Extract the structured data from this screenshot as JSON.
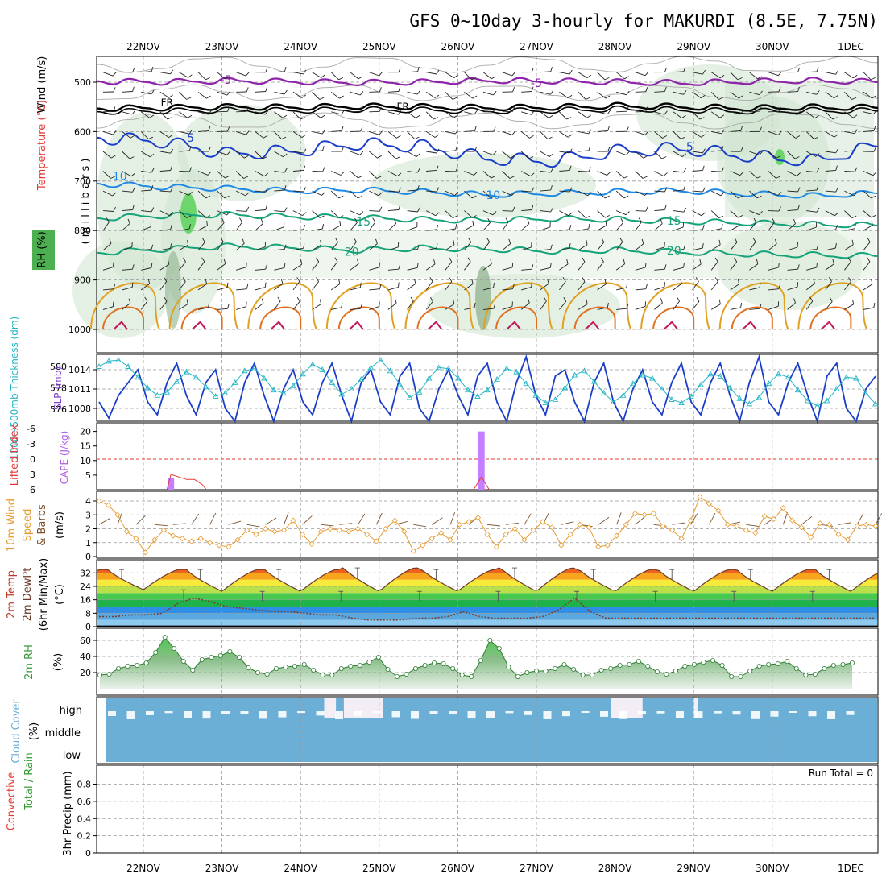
{
  "title": "GFS 0~10day 3-hourly for MAKURDI (8.5E, 7.75N)",
  "date_labels": [
    "22NOV",
    "23NOV",
    "24NOV",
    "25NOV",
    "26NOV",
    "27NOV",
    "28NOV",
    "29NOV",
    "30NOV",
    "1DEC"
  ],
  "run_total_text": "Run Total = 0",
  "colors": {
    "rh_green": "#4caf50",
    "temp_red": "#e53935",
    "wind_purple": "#7b1fa2",
    "cape_violet": "#c77dff",
    "slp_blue": "#1a3ec8",
    "thick_cyan": "#26b5c5",
    "wind_orange": "#e69a2e",
    "cloud_blue": "#6baed6",
    "rh2m_green": "#3a9a3a"
  },
  "chart_data": [
    {
      "panel": "upper_air",
      "type": "contour",
      "ylabel_parts": [
        "RH (%)",
        "Temperature (°C)",
        "Wind (m/s)"
      ],
      "ylabel_right": "( m i l l i b a r s )",
      "yticks": [
        "500",
        "600",
        "700",
        "800",
        "900",
        "1000"
      ],
      "ylim": [
        1000,
        450
      ],
      "contour_labels": [
        {
          "text": "-5",
          "color": "#8e24aa",
          "x_day": 1.05,
          "p": 495
        },
        {
          "text": "-5",
          "color": "#8e24aa",
          "x_day": 5.0,
          "p": 502
        },
        {
          "text": "FR",
          "color": "#000000",
          "x_day": 0.3,
          "p": 540
        },
        {
          "text": "FR",
          "color": "#000000",
          "x_day": 3.3,
          "p": 548
        },
        {
          "text": "5",
          "color": "#1a3ec8",
          "x_day": 0.6,
          "p": 612
        },
        {
          "text": "5",
          "color": "#1a3ec8",
          "x_day": 6.95,
          "p": 630
        },
        {
          "text": "10",
          "color": "#1e88e5",
          "x_day": -0.3,
          "p": 690
        },
        {
          "text": "10",
          "color": "#1e88e5",
          "x_day": 4.45,
          "p": 728
        },
        {
          "text": "15",
          "color": "#16a37a",
          "x_day": 2.8,
          "p": 782
        },
        {
          "text": "15",
          "color": "#16a37a",
          "x_day": 6.75,
          "p": 780
        },
        {
          "text": "20",
          "color": "#16a37a",
          "x_day": 2.65,
          "p": 843
        },
        {
          "text": "20",
          "color": "#16a37a",
          "x_day": 6.75,
          "p": 840
        }
      ],
      "isotherm_levels": {
        "minus5": [
          498,
          500,
          497,
          499,
          501,
          500,
          497,
          498,
          500,
          502,
          499,
          497,
          500
        ],
        "freezing": [
          553,
          552,
          550,
          551,
          549,
          550,
          552,
          551,
          548,
          550,
          553,
          551,
          552
        ],
        "plus5": [
          612,
          620,
          645,
          640,
          625,
          630,
          655,
          660,
          640,
          635,
          650,
          660,
          630
        ],
        "plus10": [
          705,
          712,
          715,
          720,
          718,
          722,
          728,
          725,
          722,
          720,
          726,
          730,
          725
        ],
        "plus15": [
          775,
          770,
          768,
          772,
          774,
          778,
          780,
          776,
          778,
          782,
          785,
          788,
          790
        ],
        "plus20": [
          845,
          838,
          832,
          835,
          840,
          836,
          838,
          842,
          840,
          844,
          848,
          850,
          852
        ]
      }
    },
    {
      "panel": "slp_thickness",
      "type": "line",
      "ylabel_left": "1000~500mb Thickness (dm)",
      "ylabel_right": "SLP (mb)",
      "left_ticks": [
        "580",
        "578",
        "576"
      ],
      "right_ticks": [
        "1014",
        "1011",
        "1008"
      ],
      "series": [
        {
          "name": "SLP",
          "color": "#1a3ec8",
          "values": [
            1009,
            1006.5,
            1010,
            1012,
            1014,
            1009,
            1007,
            1012,
            1015,
            1010,
            1007,
            1012,
            1014,
            1008,
            1006,
            1012,
            1015,
            1010,
            1006,
            1011,
            1014,
            1009,
            1007,
            1012,
            1015,
            1010,
            1006,
            1012,
            1014,
            1009,
            1007,
            1013,
            1015,
            1008,
            1006,
            1011,
            1014,
            1010,
            1007,
            1013,
            1015,
            1009,
            1006,
            1012,
            1016,
            1010,
            1007,
            1013,
            1014,
            1009,
            1006,
            1012,
            1015,
            1009,
            1006,
            1011,
            1014,
            1009,
            1007,
            1012,
            1015,
            1009,
            1007,
            1012,
            1015,
            1010,
            1006,
            1012,
            1016,
            1009,
            1007,
            1012,
            1015,
            1010,
            1006,
            1013,
            1015,
            1008,
            1006,
            1011,
            1013
          ]
        },
        {
          "name": "Thickness",
          "color": "#26b5c5",
          "values": [
            580,
            580.5,
            580.6,
            580,
            579,
            578,
            577.3,
            577.6,
            578.6,
            579.5,
            579,
            578.1,
            577.2,
            577.5,
            578.5,
            579.6,
            579.8,
            578.9,
            577.8,
            577.5,
            578.2,
            579.3,
            580.2,
            579.7,
            578.5,
            577.4,
            577.9,
            578.8,
            579.9,
            580.6,
            579.6,
            578.3,
            577.1,
            577.6,
            578.9,
            579.9,
            579.8,
            578.9,
            577.8,
            577.2,
            577.8,
            578.8,
            579.8,
            579.5,
            578.4,
            577.3,
            576.6,
            576.9,
            578,
            579.2,
            579.6,
            578.6,
            577.5,
            576.7,
            577.3,
            578.4,
            579.2,
            578.9,
            577.9,
            576.9,
            576.6,
            577.2,
            578.3,
            579.3,
            579.1,
            578,
            577,
            576.5,
            577.1,
            578.4,
            579.3,
            579,
            577.8,
            576.8,
            576.3,
            576.8,
            577.9,
            579,
            578.9,
            577.5,
            576.5
          ]
        }
      ]
    },
    {
      "panel": "cape_li",
      "type": "bar+line",
      "ylabel_left": "Lifted Index",
      "ylabel_right": "CAPE (J/kg)",
      "li_ticks": [
        "-6",
        "-3",
        "0",
        "3",
        "6"
      ],
      "cape_ticks": [
        "20",
        "15",
        "10",
        "5"
      ],
      "cape_bars": [
        {
          "x_day": 0.35,
          "value": 4
        },
        {
          "x_day": 4.3,
          "value": 20
        }
      ],
      "li_series": {
        "points": [
          [
            0.3,
            6
          ],
          [
            0.35,
            3
          ],
          [
            0.45,
            3.5
          ],
          [
            0.55,
            4
          ],
          [
            0.65,
            4
          ],
          [
            0.75,
            5
          ],
          [
            0.8,
            6
          ],
          [
            4.2,
            6
          ],
          [
            4.3,
            3.5
          ],
          [
            4.4,
            6
          ]
        ]
      },
      "reference_line": 0
    },
    {
      "panel": "wind10m",
      "type": "line",
      "ylabel": "10m Wind Speed & Barbs (m/s)",
      "yticks": [
        "4",
        "3",
        "2",
        "1",
        "0"
      ],
      "ylim": [
        0,
        4.5
      ],
      "values": [
        4,
        3.7,
        3,
        1.8,
        1.3,
        0.3,
        1.2,
        1.9,
        1.5,
        1.3,
        1.1,
        1.3,
        1,
        0.8,
        0.7,
        1.2,
        1.9,
        1.6,
        2,
        1.8,
        1.9,
        2.6,
        1.6,
        0.9,
        1.8,
        2,
        1.9,
        1.8,
        2,
        1.6,
        1.1,
        2,
        2.6,
        1.8,
        0.4,
        0.8,
        1.3,
        1.7,
        1.2,
        2.3,
        2.5,
        2.8,
        1.6,
        0.7,
        1.6,
        2,
        1.2,
        1.9,
        2.5,
        2.1,
        0.8,
        1.6,
        2.3,
        2.1,
        0.7,
        0.8,
        1.5,
        2.3,
        3.1,
        3,
        3.1,
        2.2,
        1.9,
        1.3,
        2.6,
        4.3,
        3.8,
        3.3,
        2.3,
        2.2,
        1.9,
        1.7,
        2.9,
        2.7,
        3.5,
        2.6,
        2.1,
        1.4,
        2.4,
        2.3,
        1.6,
        1.2,
        2.2,
        2.3,
        2.2
      ]
    },
    {
      "panel": "temp2m",
      "type": "area",
      "ylabel": "2m Temp 2m DewPt (6hr Min/Max) (°C)",
      "yticks": [
        "32",
        "24",
        "16",
        "8",
        "0"
      ],
      "ylim": [
        0,
        40
      ],
      "days": [
        {
          "min": 22,
          "max": 34
        },
        {
          "min": 21,
          "max": 34
        },
        {
          "min": 21,
          "max": 34
        },
        {
          "min": 21,
          "max": 35
        },
        {
          "min": 21,
          "max": 34
        },
        {
          "min": 21,
          "max": 35
        },
        {
          "min": 21,
          "max": 34
        },
        {
          "min": 21,
          "max": 34
        },
        {
          "min": 21,
          "max": 34
        },
        {
          "min": 21,
          "max": 34
        }
      ],
      "dewpoint": [
        6,
        6,
        7,
        7,
        8,
        14,
        17,
        15,
        12,
        11,
        10,
        9,
        9,
        8,
        7,
        7,
        5,
        4,
        4,
        4,
        5,
        5,
        6,
        9,
        6,
        5,
        5,
        5,
        6,
        10,
        17,
        9,
        5,
        5,
        5,
        5,
        5,
        5,
        5,
        5,
        5,
        5,
        5,
        5,
        5,
        5,
        5,
        5,
        5,
        5
      ]
    },
    {
      "panel": "rh2m",
      "type": "area",
      "ylabel": "2m RH (%)",
      "yticks": [
        "60",
        "40",
        "20"
      ],
      "ylim": [
        0,
        70
      ],
      "values": [
        17,
        18,
        25,
        28,
        29,
        32,
        45,
        64,
        50,
        34,
        23,
        36,
        39,
        41,
        46,
        39,
        26,
        20,
        18,
        25,
        27,
        28,
        30,
        23,
        17,
        17,
        25,
        28,
        29,
        33,
        39,
        24,
        15,
        18,
        25,
        29,
        32,
        31,
        25,
        17,
        15,
        35,
        60,
        50,
        27,
        15,
        20,
        22,
        22,
        25,
        30,
        24,
        17,
        17,
        23,
        25,
        29,
        30,
        34,
        28,
        21,
        18,
        22,
        28,
        30,
        33,
        35,
        29,
        15,
        15,
        22,
        28,
        30,
        31,
        34,
        25,
        17,
        18,
        25,
        29,
        30,
        32
      ]
    },
    {
      "panel": "cloud",
      "type": "heatmap",
      "ylabel": "Cloud Cover (%)",
      "rows": [
        "high",
        "middle",
        "low"
      ],
      "high_gaps": [
        [
          2.3,
          2.45
        ],
        [
          2.55,
          3.05
        ],
        [
          5.95,
          6.35
        ],
        [
          7.0,
          7.05
        ]
      ]
    },
    {
      "panel": "precip",
      "type": "bar",
      "ylabel_parts": [
        "Total / Rain",
        "Convective",
        "3hr Precip (mm)"
      ],
      "yticks": [
        "0.8",
        "0.6",
        "0.4",
        "0.2",
        "0"
      ],
      "ylim": [
        0,
        1
      ],
      "values": []
    }
  ]
}
